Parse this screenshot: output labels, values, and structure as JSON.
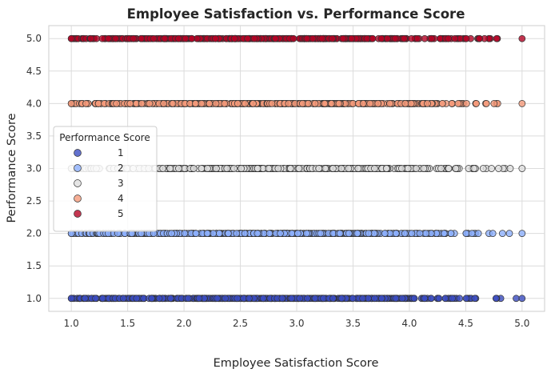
{
  "chart_data": {
    "type": "scatter",
    "title": "Employee Satisfaction vs. Performance Score",
    "xlabel": "Employee Satisfaction Score",
    "ylabel": "Performance Score",
    "xlim": [
      0.8,
      5.2
    ],
    "ylim": [
      0.8,
      5.2
    ],
    "xticks": [
      "1.0",
      "1.5",
      "2.0",
      "2.5",
      "3.0",
      "3.5",
      "4.0",
      "4.5",
      "5.0"
    ],
    "yticks": [
      "1.0",
      "1.5",
      "2.0",
      "2.5",
      "3.0",
      "3.5",
      "4.0",
      "4.5",
      "5.0"
    ],
    "grid": true,
    "legend": {
      "title": "Performance Score",
      "placement": "center-left",
      "entries": [
        "1",
        "2",
        "3",
        "4",
        "5"
      ]
    },
    "x_range_per_series": [
      1.0,
      5.0
    ],
    "series": [
      {
        "name": "1",
        "y": 1.0,
        "color": "#3b4cc0"
      },
      {
        "name": "2",
        "y": 2.0,
        "color": "#8db0fe"
      },
      {
        "name": "3",
        "y": 3.0,
        "color": "#dddddd"
      },
      {
        "name": "4",
        "y": 4.0,
        "color": "#f49a7b"
      },
      {
        "name": "5",
        "y": 5.0,
        "color": "#b40426"
      }
    ]
  }
}
